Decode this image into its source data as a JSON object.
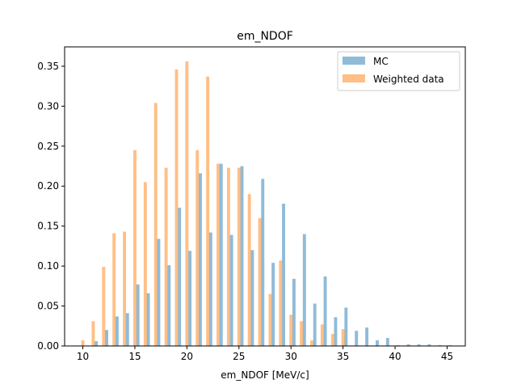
{
  "chart_data": {
    "type": "bar",
    "title": "em_NDOF",
    "xlabel": "em_NDOF [MeV/c]",
    "ylabel": "",
    "xlim": [
      8.25,
      46.75
    ],
    "ylim": [
      0,
      0.3742
    ],
    "xticks": [
      10,
      15,
      20,
      25,
      30,
      35,
      40,
      45
    ],
    "yticks": [
      0.0,
      0.05,
      0.1,
      0.15,
      0.2,
      0.25,
      0.3,
      0.35
    ],
    "xtick_labels": [
      "10",
      "15",
      "20",
      "25",
      "30",
      "35",
      "40",
      "45"
    ],
    "ytick_labels": [
      "0.00",
      "0.05",
      "0.10",
      "0.15",
      "0.20",
      "0.25",
      "0.30",
      "0.35"
    ],
    "legend_position": "upper right",
    "series": [
      {
        "name": "MC",
        "color": "#1f77b4",
        "alpha": 0.5,
        "x": [
          10,
          11,
          12,
          13,
          14,
          15,
          16,
          17,
          18,
          19,
          20,
          21,
          22,
          23,
          24,
          25,
          26,
          27,
          28,
          29,
          30,
          31,
          32,
          33,
          34,
          35,
          36,
          37,
          38,
          39,
          40,
          41,
          42,
          43,
          44,
          45
        ],
        "values": [
          0.0,
          0.006,
          0.02,
          0.037,
          0.041,
          0.077,
          0.066,
          0.134,
          0.101,
          0.173,
          0.119,
          0.216,
          0.142,
          0.228,
          0.139,
          0.225,
          0.12,
          0.209,
          0.104,
          0.178,
          0.084,
          0.14,
          0.053,
          0.087,
          0.036,
          0.048,
          0.019,
          0.023,
          0.007,
          0.01,
          0.001,
          0.002,
          0.002,
          0.002,
          0.001,
          0.001
        ]
      },
      {
        "name": "Weighted data",
        "color": "#ff7f0e",
        "alpha": 0.5,
        "x": [
          10,
          11,
          12,
          13,
          14,
          15,
          16,
          17,
          18,
          19,
          20,
          21,
          22,
          23,
          24,
          25,
          26,
          27,
          28,
          29,
          30,
          31,
          32,
          33,
          34,
          35,
          36,
          37,
          38,
          39,
          40,
          41,
          42,
          43,
          44,
          45
        ],
        "values": [
          0.007,
          0.031,
          0.099,
          0.141,
          0.143,
          0.245,
          0.205,
          0.304,
          0.223,
          0.346,
          0.356,
          0.245,
          0.337,
          0.228,
          0.223,
          0.223,
          0.19,
          0.16,
          0.065,
          0.107,
          0.039,
          0.031,
          0.007,
          0.027,
          0.015,
          0.021,
          0.0,
          0.0,
          0.0,
          0.0,
          0.0,
          0.0,
          0.0,
          0.0,
          0.0,
          0.0
        ]
      }
    ]
  }
}
